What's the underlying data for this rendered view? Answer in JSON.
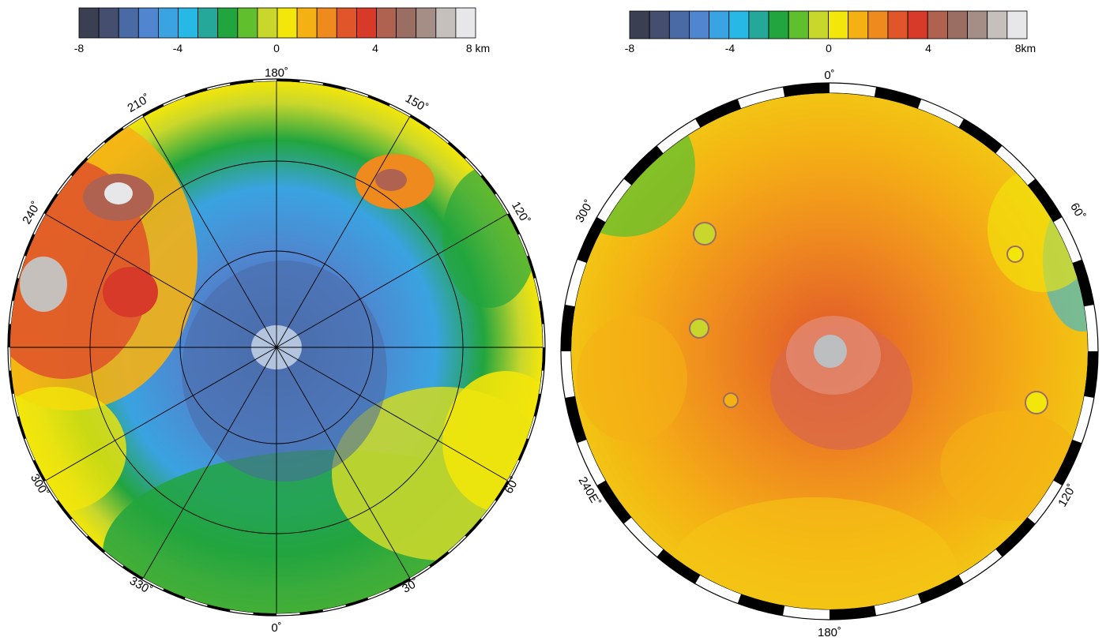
{
  "north_map": {
    "colorbar": {
      "ticks": [
        "-8",
        "-4",
        "0",
        "4",
        "8 km"
      ],
      "colors": [
        "#3a3f52",
        "#454e6e",
        "#4a6aa5",
        "#4f86cf",
        "#3aa3e1",
        "#28b8e6",
        "#25a89a",
        "#22a53e",
        "#5fbf2d",
        "#c9d72c",
        "#f2e60a",
        "#f5b114",
        "#ef8a1f",
        "#e0562a",
        "#d83a2a",
        "#b06250",
        "#9a6e62",
        "#a58e86",
        "#c6c0bd",
        "#e7e7ea"
      ]
    },
    "degree_labels": [
      "180˚",
      "150˚",
      "120˚",
      "60˚",
      "30˚",
      "0˚",
      "330˚",
      "300˚",
      "240˚",
      "210˚"
    ],
    "spokes_deg": [
      0,
      30,
      60,
      90,
      120,
      150,
      180,
      210,
      240,
      270,
      300,
      330
    ]
  },
  "south_map": {
    "colorbar": {
      "ticks": [
        "-8",
        "-4",
        "0",
        "4",
        "8km"
      ],
      "colors": [
        "#3a3f52",
        "#454e6e",
        "#4a6aa5",
        "#4f86cf",
        "#3aa3e1",
        "#28b8e6",
        "#25a89a",
        "#22a53e",
        "#5fbf2d",
        "#c9d72c",
        "#f2e60a",
        "#f5b114",
        "#ef8a1f",
        "#e0562a",
        "#d83a2a",
        "#b06250",
        "#9a6e62",
        "#a58e86",
        "#c6c0bd",
        "#e7e7ea"
      ]
    },
    "degree_labels": [
      "0˚",
      "60˚",
      "120˚",
      "180˚",
      "240E˚",
      "300˚"
    ]
  }
}
